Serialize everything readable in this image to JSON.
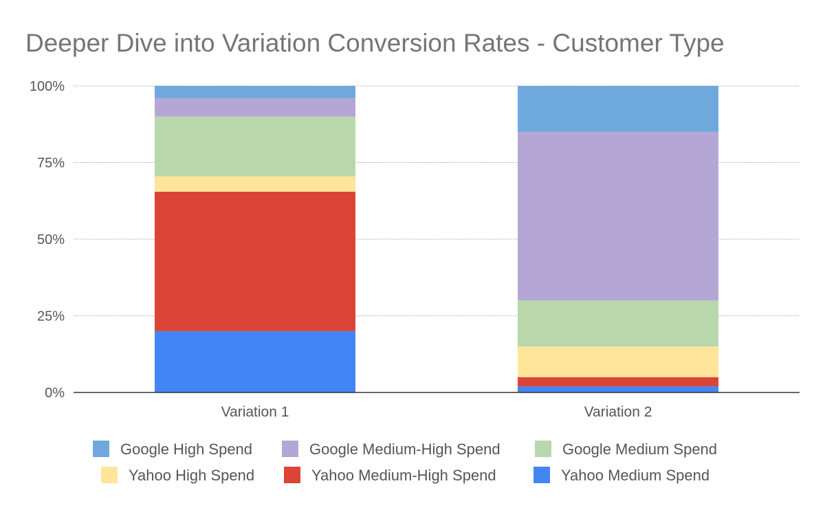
{
  "chart_data": {
    "type": "bar",
    "stacked": true,
    "percent_stacked": true,
    "title": "Deeper Dive into Variation Conversion Rates - Customer Type",
    "xlabel": "",
    "ylabel": "",
    "categories": [
      "Variation 1",
      "Variation 2"
    ],
    "ylim": [
      0,
      100
    ],
    "y_ticks": [
      "0%",
      "25%",
      "50%",
      "75%",
      "100%"
    ],
    "y_tick_values": [
      0,
      25,
      50,
      75,
      100
    ],
    "grid": true,
    "legend_position": "bottom",
    "series": [
      {
        "name": "Yahoo Medium Spend",
        "color": "#4285f4",
        "values": [
          20,
          2
        ]
      },
      {
        "name": "Yahoo Medium-High Spend",
        "color": "#db4437",
        "values": [
          45.5,
          3
        ]
      },
      {
        "name": "Yahoo High Spend",
        "color": "#fee599",
        "values": [
          5,
          10
        ]
      },
      {
        "name": "Google Medium Spend",
        "color": "#b8d7ab",
        "values": [
          19.5,
          15
        ]
      },
      {
        "name": "Google Medium-High Spend",
        "color": "#b4a7d6",
        "values": [
          6,
          55
        ]
      },
      {
        "name": "Google High Spend",
        "color": "#6ea8dc",
        "values": [
          4,
          15
        ]
      }
    ],
    "legend_order": [
      "Google High Spend",
      "Google Medium-High Spend",
      "Google Medium Spend",
      "Yahoo High Spend",
      "Yahoo Medium-High Spend",
      "Yahoo Medium Spend"
    ]
  }
}
